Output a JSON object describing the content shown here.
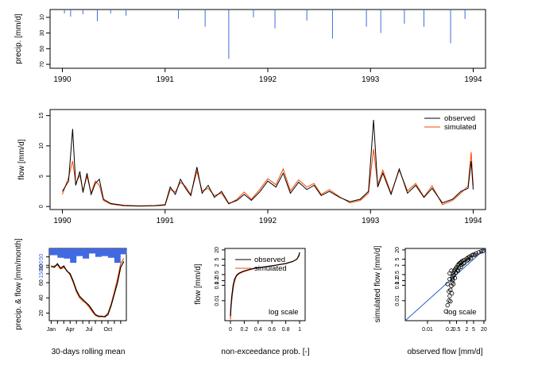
{
  "chart_data": [
    {
      "type": "bar",
      "panel": "precipitation",
      "ylabel": "precip. [mm/d]",
      "y_reversed": true,
      "ylim": [
        0,
        75
      ],
      "ytick_labels": [
        "10",
        "30",
        "50",
        "70"
      ],
      "xtick_labels": [
        "1990",
        "1991",
        "1992",
        "1993",
        "1994"
      ],
      "xlim": [
        1989.88,
        1994.12
      ],
      "color": "#4169e1",
      "x": [
        1990.02,
        1990.08,
        1990.2,
        1990.34,
        1990.47,
        1990.62,
        1991.13,
        1991.39,
        1991.62,
        1991.86,
        1992.07,
        1992.38,
        1992.63,
        1992.96,
        1993.1,
        1993.33,
        1993.52,
        1993.78,
        1993.92
      ],
      "values": [
        5,
        9,
        6,
        15,
        5,
        8,
        12,
        22,
        63,
        10,
        24,
        14,
        37,
        22,
        30,
        18,
        22,
        43,
        12
      ]
    },
    {
      "type": "line",
      "panel": "hydrograph",
      "ylabel": "flow [mm/d]",
      "ylim": [
        -0.5,
        16
      ],
      "ytick_labels": [
        "0",
        "5",
        "10",
        "15"
      ],
      "xtick_labels": [
        "1990",
        "1991",
        "1992",
        "1993",
        "1994"
      ],
      "xlim": [
        1989.88,
        1994.12
      ],
      "legend": "top-right",
      "series": [
        {
          "name": "observed",
          "color": "#000000",
          "x": [
            1990.0,
            1990.06,
            1990.1,
            1990.13,
            1990.17,
            1990.2,
            1990.24,
            1990.28,
            1990.32,
            1990.36,
            1990.4,
            1990.47,
            1990.6,
            1990.75,
            1990.9,
            1991.0,
            1991.05,
            1991.1,
            1991.15,
            1991.2,
            1991.25,
            1991.31,
            1991.36,
            1991.42,
            1991.48,
            1991.55,
            1991.62,
            1991.7,
            1991.77,
            1991.84,
            1991.92,
            1992.0,
            1992.08,
            1992.15,
            1992.22,
            1992.3,
            1992.38,
            1992.45,
            1992.52,
            1992.6,
            1992.7,
            1992.8,
            1992.9,
            1992.98,
            1993.03,
            1993.07,
            1993.12,
            1993.2,
            1993.28,
            1993.36,
            1993.44,
            1993.52,
            1993.6,
            1993.7,
            1993.8,
            1993.88,
            1993.95,
            1993.98,
            1994.0
          ],
          "y": [
            2.5,
            4.2,
            12.8,
            3.5,
            5.8,
            2.3,
            5.5,
            2.0,
            3.8,
            4.5,
            1.2,
            0.5,
            0.2,
            0.1,
            0.15,
            0.3,
            3.2,
            2.0,
            4.5,
            3.0,
            1.8,
            6.5,
            2.2,
            3.5,
            1.5,
            2.5,
            0.5,
            1.0,
            2.0,
            1.0,
            2.4,
            4.2,
            3.2,
            5.5,
            2.2,
            4.0,
            2.8,
            3.5,
            1.8,
            2.5,
            1.5,
            0.8,
            1.2,
            2.5,
            14.3,
            3.2,
            5.5,
            2.0,
            6.2,
            2.2,
            3.5,
            1.5,
            3.0,
            0.6,
            1.2,
            2.5,
            3.0,
            7.5,
            2.8
          ]
        },
        {
          "name": "simulated",
          "color": "#ff4500",
          "x": [
            1990.0,
            1990.06,
            1990.1,
            1990.13,
            1990.17,
            1990.2,
            1990.24,
            1990.28,
            1990.32,
            1990.36,
            1990.4,
            1990.47,
            1990.6,
            1990.75,
            1990.9,
            1991.0,
            1991.05,
            1991.1,
            1991.15,
            1991.2,
            1991.25,
            1991.31,
            1991.36,
            1991.42,
            1991.48,
            1991.55,
            1991.62,
            1991.7,
            1991.77,
            1991.84,
            1991.92,
            1992.0,
            1992.08,
            1992.15,
            1992.22,
            1992.3,
            1992.38,
            1992.45,
            1992.52,
            1992.6,
            1992.7,
            1992.8,
            1992.9,
            1992.98,
            1993.03,
            1993.07,
            1993.12,
            1993.2,
            1993.28,
            1993.36,
            1993.44,
            1993.52,
            1993.6,
            1993.7,
            1993.8,
            1993.88,
            1993.95,
            1993.98,
            1994.0
          ],
          "y": [
            2.0,
            4.8,
            7.5,
            3.8,
            5.2,
            2.6,
            5.0,
            2.2,
            4.2,
            3.5,
            1.0,
            0.4,
            0.1,
            0.05,
            0.1,
            0.2,
            2.8,
            2.4,
            4.0,
            3.3,
            2.0,
            5.8,
            2.6,
            3.0,
            1.8,
            2.2,
            0.4,
            1.2,
            2.4,
            1.2,
            2.8,
            4.6,
            3.6,
            6.2,
            2.6,
            4.4,
            3.2,
            3.8,
            2.0,
            2.8,
            1.6,
            0.6,
            1.0,
            2.2,
            9.5,
            3.6,
            6.0,
            2.2,
            6.0,
            2.6,
            3.8,
            1.6,
            3.4,
            0.3,
            1.0,
            2.2,
            3.4,
            9.0,
            3.5
          ]
        }
      ]
    },
    {
      "type": "line",
      "panel": "seasonal",
      "xlabel": "30-days rolling mean",
      "ylabel": "precip. & flow [mm/month]",
      "xtick_labels": [
        "Jan",
        "Apr",
        "Jul",
        "Oct"
      ],
      "precip_tick_labels": [
        "50",
        "100",
        "150"
      ],
      "flow_tick_labels": [
        "20",
        "40",
        "60",
        "80"
      ],
      "flow_ylim": [
        10,
        105
      ],
      "precip_max": 160,
      "precip_color": "#4169e1",
      "precip_months": [
        1,
        2,
        3,
        4,
        5,
        6,
        7,
        8,
        9,
        10,
        11,
        12
      ],
      "precip_values": [
        40,
        55,
        60,
        85,
        45,
        60,
        30,
        50,
        45,
        55,
        85,
        35
      ],
      "series": [
        {
          "name": "observed",
          "color": "#000000",
          "x": [
            1,
            1.5,
            2,
            2.5,
            3,
            3.5,
            4,
            4.5,
            5,
            5.5,
            6,
            6.5,
            7,
            7.5,
            8,
            8.5,
            9,
            9.5,
            10,
            10.5,
            11,
            11.5,
            12,
            12.5
          ],
          "y": [
            82,
            80,
            85,
            79,
            82,
            75,
            72,
            62,
            50,
            42,
            38,
            34,
            30,
            24,
            18,
            16,
            16,
            15,
            18,
            30,
            45,
            60,
            80,
            88
          ]
        },
        {
          "name": "simulated",
          "color": "#ff4500",
          "x": [
            1,
            1.5,
            2,
            2.5,
            3,
            3.5,
            4,
            4.5,
            5,
            5.5,
            6,
            6.5,
            7,
            7.5,
            8,
            8.5,
            9,
            9.5,
            10,
            10.5,
            11,
            11.5,
            12,
            12.5
          ],
          "y": [
            80,
            82,
            83,
            78,
            80,
            76,
            70,
            60,
            48,
            40,
            36,
            33,
            28,
            22,
            17,
            15,
            15,
            16,
            20,
            32,
            48,
            65,
            85,
            92
          ]
        }
      ]
    },
    {
      "type": "line",
      "panel": "flow-duration-curve",
      "xlabel": "non-exceedance prob. [-]",
      "ylabel": "flow [mm/d]",
      "annotation": "log scale",
      "xlim": [
        -0.08,
        1.08
      ],
      "ylim": [
        0.0005,
        25
      ],
      "xtick_labels": [
        "0",
        "0.2",
        "0.4",
        "0.6",
        "0.8",
        "1"
      ],
      "ytick_values": [
        0.01,
        0.1,
        0.2,
        0.5,
        2,
        5,
        20
      ],
      "ytick_labels": [
        "0.01",
        "0.1",
        "0.2",
        "0.5",
        "2",
        "5",
        "20"
      ],
      "legend": "top",
      "series": [
        {
          "name": "observed",
          "color": "#000000",
          "x": [
            0.0,
            0.005,
            0.02,
            0.04,
            0.06,
            0.09,
            0.12,
            0.18,
            0.25,
            0.35,
            0.5,
            0.65,
            0.8,
            0.9,
            0.96,
            0.99,
            1.0
          ],
          "y": [
            0.001,
            0.003,
            0.02,
            0.1,
            0.25,
            0.45,
            0.6,
            0.8,
            1.0,
            1.3,
            1.6,
            2.0,
            2.6,
            3.5,
            5.0,
            9.0,
            14.0
          ]
        },
        {
          "name": "simulated",
          "color": "#ff4500",
          "x": [
            0.0,
            0.003,
            0.01,
            0.03,
            0.05,
            0.08,
            0.12,
            0.18,
            0.25,
            0.35,
            0.5,
            0.65,
            0.8,
            0.9,
            0.96,
            0.99,
            1.0
          ],
          "y": [
            0.0006,
            0.001,
            0.004,
            0.03,
            0.12,
            0.35,
            0.55,
            0.75,
            0.95,
            1.25,
            1.6,
            2.0,
            2.6,
            3.5,
            5.0,
            8.0,
            10.0
          ]
        }
      ]
    },
    {
      "type": "scatter",
      "panel": "observed-vs-simulated",
      "xlabel": "observed flow [mm/d]",
      "ylabel": "simulated flow [mm/d]",
      "annotation": "log scale",
      "xlim": [
        0.0005,
        25
      ],
      "ylim": [
        0.0005,
        25
      ],
      "xtick_values": [
        0.01,
        0.2,
        0.5,
        2,
        5,
        20
      ],
      "xtick_labels": [
        "0.01",
        "0.2",
        "0.5",
        "2",
        "5",
        "20"
      ],
      "ytick_values": [
        0.01,
        0.1,
        0.2,
        0.5,
        2,
        5,
        20
      ],
      "ytick_labels": [
        "0.01",
        "0.1",
        "0.2",
        "0.5",
        "2",
        "5",
        "20"
      ],
      "one_to_one_color": "#1e64c8",
      "points": [
        [
          0.12,
          0.002
        ],
        [
          0.15,
          0.005
        ],
        [
          0.18,
          0.01
        ],
        [
          0.2,
          0.02
        ],
        [
          0.22,
          0.05
        ],
        [
          0.25,
          0.09
        ],
        [
          0.28,
          0.15
        ],
        [
          0.3,
          0.22
        ],
        [
          0.3,
          0.4
        ],
        [
          0.32,
          0.6
        ],
        [
          0.35,
          0.8
        ],
        [
          0.4,
          1.0
        ],
        [
          0.45,
          1.2
        ],
        [
          0.5,
          1.5
        ],
        [
          0.6,
          2.0
        ],
        [
          0.7,
          2.5
        ],
        [
          0.8,
          2.8
        ],
        [
          0.9,
          3.0
        ],
        [
          1.0,
          3.5
        ],
        [
          1.2,
          4.0
        ],
        [
          1.5,
          4.5
        ],
        [
          2.0,
          5.5
        ],
        [
          2.5,
          6.5
        ],
        [
          3.0,
          7.5
        ],
        [
          4.0,
          9.0
        ],
        [
          5.0,
          10.0
        ],
        [
          7.0,
          12.0
        ],
        [
          10.0,
          14.0
        ],
        [
          14.0,
          16.0
        ],
        [
          18.0,
          17.0
        ],
        [
          0.35,
          0.45
        ],
        [
          0.45,
          0.7
        ],
        [
          0.55,
          1.0
        ],
        [
          0.7,
          1.4
        ],
        [
          1.0,
          2.2
        ],
        [
          1.5,
          3.0
        ],
        [
          2.2,
          4.2
        ],
        [
          3.5,
          6.0
        ],
        [
          0.2,
          0.6
        ],
        [
          0.25,
          0.9
        ],
        [
          0.28,
          0.3
        ],
        [
          0.33,
          0.12
        ],
        [
          0.18,
          0.04
        ],
        [
          0.6,
          0.9
        ],
        [
          0.9,
          1.6
        ],
        [
          1.3,
          2.6
        ],
        [
          2.5,
          4.8
        ],
        [
          6.0,
          9.5
        ],
        [
          0.4,
          0.3
        ],
        [
          0.2,
          0.25
        ],
        [
          0.15,
          0.12
        ],
        [
          0.22,
          0.009
        ],
        [
          0.27,
          0.03
        ]
      ]
    }
  ]
}
